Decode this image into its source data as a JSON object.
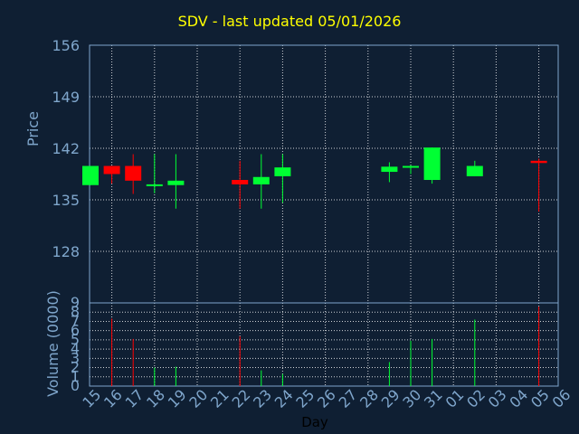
{
  "chart_data": [
    {
      "type": "candlestick",
      "title": "SDV - last updated 05/01/2026",
      "ylabel": "Price",
      "ylim": [
        121,
        156
      ],
      "yticks": [
        156,
        149,
        142,
        135,
        128
      ],
      "categories": [
        "15",
        "16",
        "17",
        "18",
        "19",
        "20",
        "21",
        "22",
        "23",
        "24",
        "25",
        "26",
        "27",
        "28",
        "29",
        "30",
        "31",
        "01",
        "02",
        "03",
        "04",
        "05",
        "06"
      ],
      "candles": [
        {
          "day": "15",
          "open": 139.6,
          "high": 139.6,
          "low": 137.0,
          "close": 137.0,
          "dir": "up"
        },
        {
          "day": "16",
          "open": 139.6,
          "high": 139.6,
          "low": 137.2,
          "close": 138.5,
          "dir": "down"
        },
        {
          "day": "17",
          "open": 139.6,
          "high": 141.2,
          "low": 135.8,
          "close": 137.6,
          "dir": "down"
        },
        {
          "day": "18",
          "open": 136.9,
          "high": 141.2,
          "low": 135.9,
          "close": 137.1,
          "dir": "up"
        },
        {
          "day": "19",
          "open": 137.0,
          "high": 141.2,
          "low": 133.8,
          "close": 137.6,
          "dir": "up"
        },
        {
          "day": "22",
          "open": 137.7,
          "high": 140.3,
          "low": 133.8,
          "close": 137.1,
          "dir": "down"
        },
        {
          "day": "23",
          "open": 137.1,
          "high": 141.2,
          "low": 133.8,
          "close": 138.1,
          "dir": "up"
        },
        {
          "day": "24",
          "open": 138.2,
          "high": 141.2,
          "low": 134.6,
          "close": 139.4,
          "dir": "up"
        },
        {
          "day": "29",
          "open": 138.8,
          "high": 140.1,
          "low": 137.4,
          "close": 139.5,
          "dir": "up"
        },
        {
          "day": "30",
          "open": 139.4,
          "high": 139.7,
          "low": 138.5,
          "close": 139.6,
          "dir": "up"
        },
        {
          "day": "31",
          "open": 137.7,
          "high": 142.1,
          "low": 137.2,
          "close": 142.1,
          "dir": "up"
        },
        {
          "day": "02",
          "open": 138.2,
          "high": 140.3,
          "low": 138.2,
          "close": 139.6,
          "dir": "up"
        },
        {
          "day": "05",
          "open": 140.3,
          "high": 140.6,
          "low": 133.4,
          "close": 140.0,
          "dir": "down"
        }
      ]
    },
    {
      "type": "bar",
      "xlabel": "Day",
      "ylabel": "Volume (0000)",
      "ylim": [
        0,
        9
      ],
      "yticks": [
        0,
        1,
        2,
        3,
        4,
        5,
        6,
        7,
        8,
        9
      ],
      "categories": [
        "15",
        "16",
        "17",
        "18",
        "19",
        "20",
        "21",
        "22",
        "23",
        "24",
        "25",
        "26",
        "27",
        "28",
        "29",
        "30",
        "31",
        "01",
        "02",
        "03",
        "04",
        "05",
        "06"
      ],
      "bars": [
        {
          "day": "16",
          "value": 7.3,
          "dir": "down"
        },
        {
          "day": "17",
          "value": 5.1,
          "dir": "down"
        },
        {
          "day": "18",
          "value": 2.0,
          "dir": "up"
        },
        {
          "day": "19",
          "value": 2.1,
          "dir": "up"
        },
        {
          "day": "22",
          "value": 5.4,
          "dir": "down"
        },
        {
          "day": "23",
          "value": 1.7,
          "dir": "up"
        },
        {
          "day": "24",
          "value": 1.3,
          "dir": "up"
        },
        {
          "day": "29",
          "value": 2.6,
          "dir": "up"
        },
        {
          "day": "30",
          "value": 4.9,
          "dir": "up"
        },
        {
          "day": "31",
          "value": 5.1,
          "dir": "up"
        },
        {
          "day": "02",
          "value": 7.2,
          "dir": "up"
        },
        {
          "day": "05",
          "value": 8.6,
          "dir": "down"
        }
      ]
    }
  ],
  "colors": {
    "background": "#0f1f33",
    "title": "#ffff00",
    "axis_text": "#7fa6cc",
    "grid": "#ffffff",
    "up": "#00ff33",
    "down": "#ff0000",
    "frame": "#7fa6cc"
  }
}
